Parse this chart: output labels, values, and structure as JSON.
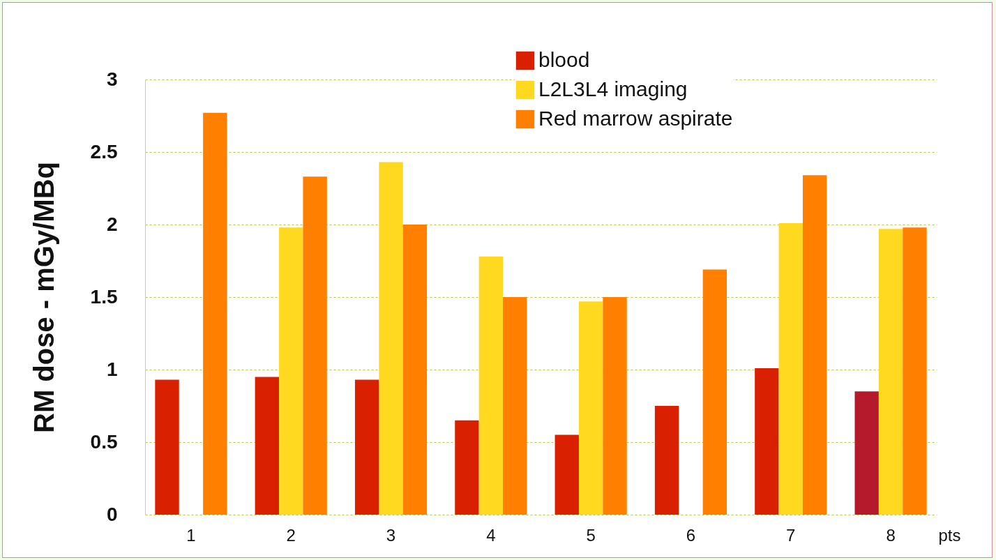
{
  "chart_data": {
    "type": "bar",
    "ylabel": "RM dose - mGy/MBq",
    "xlabel": "pts",
    "categories": [
      "1",
      "2",
      "3",
      "4",
      "5",
      "6",
      "7",
      "8"
    ],
    "series": [
      {
        "name": "blood",
        "color": "#d92000",
        "colors": [
          "#d92000",
          "#d92000",
          "#d92000",
          "#d92000",
          "#d92000",
          "#d92000",
          "#d92000",
          "#b5192c"
        ],
        "values": [
          0.93,
          0.95,
          0.93,
          0.65,
          0.55,
          0.75,
          1.01,
          0.85
        ]
      },
      {
        "name": "L2L3L4 imaging",
        "color": "#ffd820",
        "values": [
          null,
          1.98,
          2.43,
          1.78,
          1.47,
          null,
          2.01,
          1.97
        ]
      },
      {
        "name": "Red marrow aspirate",
        "color": "#ff7f00",
        "values": [
          2.77,
          2.33,
          2.0,
          1.5,
          1.5,
          1.69,
          2.34,
          1.98
        ]
      }
    ],
    "ylim": [
      0,
      3
    ],
    "yticks": [
      0,
      0.5,
      1,
      1.5,
      2,
      2.5,
      3
    ],
    "grid": "y",
    "legend": "top right"
  }
}
